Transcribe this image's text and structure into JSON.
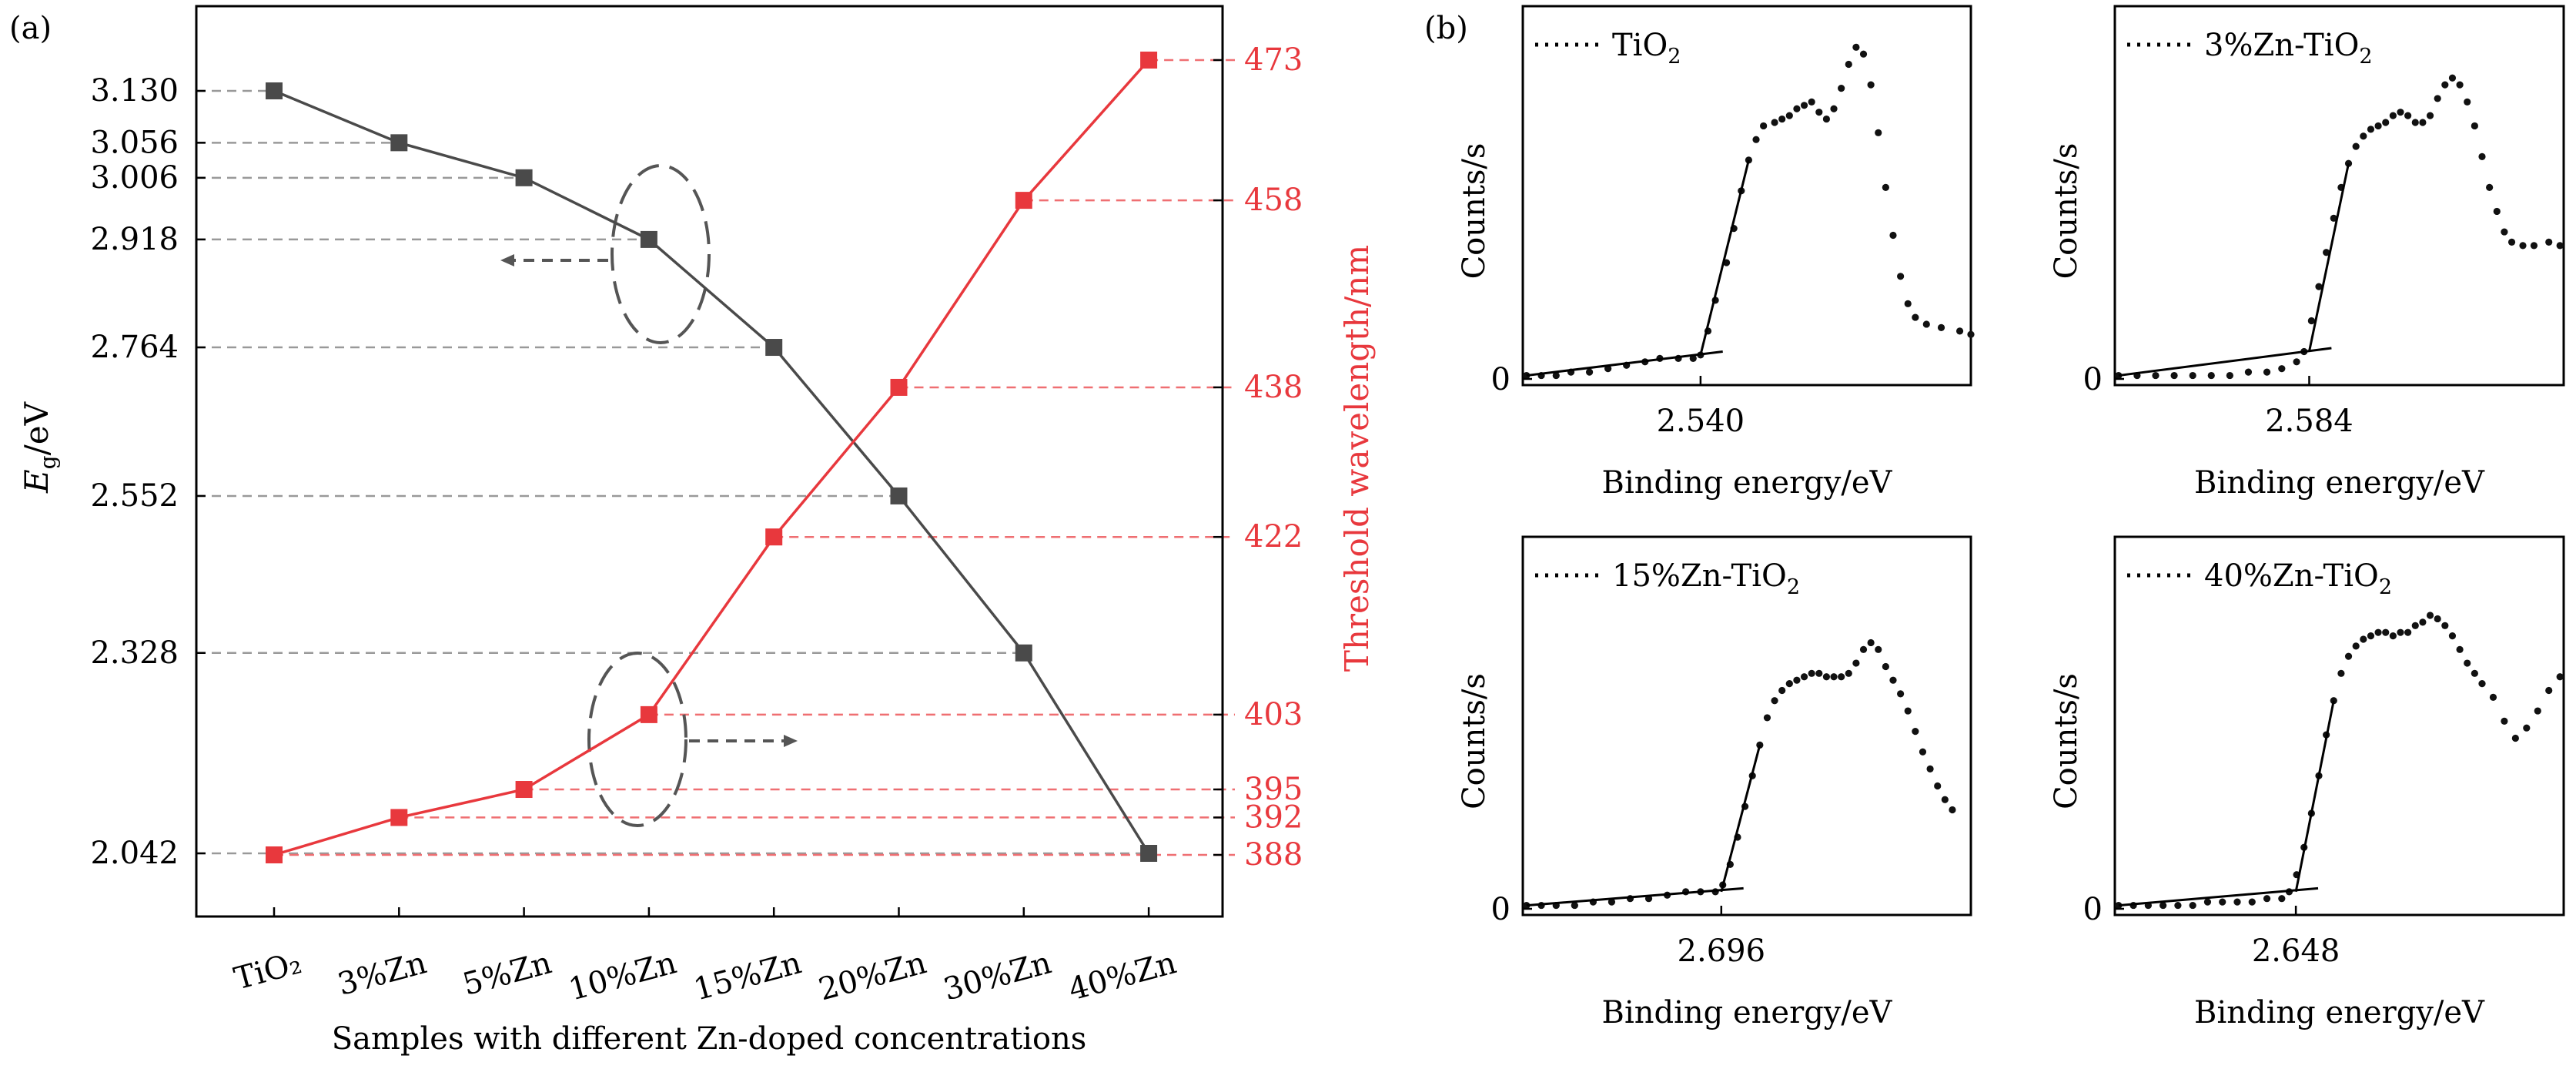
{
  "chart_data": [
    {
      "type": "line",
      "panel_label": "(a)",
      "xlabel": "Samples with different Zn-doped concentrations",
      "categories": [
        "TiO₂",
        "3%Zn",
        "5%Zn",
        "10%Zn",
        "15%Zn",
        "20%Zn",
        "30%Zn",
        "40%Zn"
      ],
      "y_left": {
        "label_main": "E",
        "label_sub": "g",
        "label_unit": "/eV",
        "ticks": [
          3.13,
          3.056,
          3.006,
          2.918,
          2.764,
          2.552,
          2.328,
          2.042
        ],
        "tick_labels": [
          "3.130",
          "3.056",
          "3.006",
          "2.918",
          "2.764",
          "2.552",
          "2.328",
          "2.042"
        ],
        "ylim": [
          1.93,
          3.24
        ]
      },
      "y_right": {
        "label": "Threshold wavelength/nm",
        "ticks": [
          473,
          458,
          438,
          422,
          403,
          395,
          392,
          388
        ],
        "tick_labels": [
          "473",
          "458",
          "438",
          "422",
          "403",
          "395",
          "392",
          "388"
        ],
        "ylim": [
          379,
          479
        ]
      },
      "series": [
        {
          "name": "Eg",
          "axis": "left",
          "color": "#4a4a4a",
          "values": [
            3.13,
            3.056,
            3.006,
            2.918,
            2.764,
            2.552,
            2.328,
            2.042
          ]
        },
        {
          "name": "Threshold wavelength",
          "axis": "right",
          "color": "#e8383d",
          "values": [
            388,
            392,
            395,
            403,
            422,
            438,
            458,
            473
          ]
        }
      ]
    },
    {
      "type": "scatter",
      "panel_label": "(b)",
      "subplots": [
        {
          "legend_label": "TiO",
          "legend_sub": "2",
          "xlabel": "Binding energy/eV",
          "ylabel": "Counts/s",
          "xtick": "2.540",
          "ytick": "0",
          "onset": 2.54,
          "xlim": [
            2.06,
            3.27
          ],
          "points": [
            [
              2.07,
              0.01
            ],
            [
              2.11,
              0.01
            ],
            [
              2.15,
              0.01
            ],
            [
              2.19,
              0.02
            ],
            [
              2.24,
              0.02
            ],
            [
              2.29,
              0.03
            ],
            [
              2.34,
              0.04
            ],
            [
              2.39,
              0.05
            ],
            [
              2.43,
              0.06
            ],
            [
              2.48,
              0.06
            ],
            [
              2.52,
              0.06
            ],
            [
              2.54,
              0.07
            ],
            [
              2.56,
              0.14
            ],
            [
              2.58,
              0.23
            ],
            [
              2.61,
              0.34
            ],
            [
              2.63,
              0.44
            ],
            [
              2.65,
              0.55
            ],
            [
              2.67,
              0.64
            ],
            [
              2.69,
              0.7
            ],
            [
              2.71,
              0.74
            ],
            [
              2.74,
              0.75
            ],
            [
              2.76,
              0.76
            ],
            [
              2.78,
              0.77
            ],
            [
              2.8,
              0.79
            ],
            [
              2.82,
              0.8
            ],
            [
              2.84,
              0.81
            ],
            [
              2.86,
              0.78
            ],
            [
              2.88,
              0.76
            ],
            [
              2.9,
              0.79
            ],
            [
              2.92,
              0.85
            ],
            [
              2.94,
              0.92
            ],
            [
              2.96,
              0.97
            ],
            [
              2.98,
              0.95
            ],
            [
              3.0,
              0.86
            ],
            [
              3.02,
              0.72
            ],
            [
              3.04,
              0.56
            ],
            [
              3.06,
              0.42
            ],
            [
              3.08,
              0.3
            ],
            [
              3.1,
              0.22
            ],
            [
              3.12,
              0.18
            ],
            [
              3.15,
              0.16
            ],
            [
              3.19,
              0.15
            ],
            [
              3.24,
              0.14
            ],
            [
              3.27,
              0.13
            ]
          ]
        },
        {
          "legend_label": "3%Zn-TiO",
          "legend_sub": "2",
          "xlabel": "Binding energy/eV",
          "ylabel": "Counts/s",
          "xtick": "2.584",
          "ytick": "0",
          "onset": 2.584,
          "xlim": [
            2.06,
            3.27
          ],
          "points": [
            [
              2.07,
              0.01
            ],
            [
              2.12,
              0.01
            ],
            [
              2.17,
              0.01
            ],
            [
              2.22,
              0.01
            ],
            [
              2.27,
              0.01
            ],
            [
              2.32,
              0.01
            ],
            [
              2.37,
              0.01
            ],
            [
              2.42,
              0.02
            ],
            [
              2.47,
              0.02
            ],
            [
              2.51,
              0.03
            ],
            [
              2.55,
              0.05
            ],
            [
              2.57,
              0.08
            ],
            [
              2.59,
              0.17
            ],
            [
              2.61,
              0.27
            ],
            [
              2.63,
              0.37
            ],
            [
              2.65,
              0.47
            ],
            [
              2.67,
              0.56
            ],
            [
              2.69,
              0.63
            ],
            [
              2.71,
              0.68
            ],
            [
              2.73,
              0.71
            ],
            [
              2.75,
              0.73
            ],
            [
              2.77,
              0.74
            ],
            [
              2.79,
              0.75
            ],
            [
              2.81,
              0.77
            ],
            [
              2.83,
              0.78
            ],
            [
              2.85,
              0.77
            ],
            [
              2.87,
              0.75
            ],
            [
              2.89,
              0.75
            ],
            [
              2.91,
              0.77
            ],
            [
              2.93,
              0.82
            ],
            [
              2.95,
              0.86
            ],
            [
              2.97,
              0.88
            ],
            [
              2.99,
              0.86
            ],
            [
              3.01,
              0.81
            ],
            [
              3.03,
              0.74
            ],
            [
              3.05,
              0.65
            ],
            [
              3.07,
              0.56
            ],
            [
              3.09,
              0.49
            ],
            [
              3.11,
              0.43
            ],
            [
              3.13,
              0.4
            ],
            [
              3.16,
              0.39
            ],
            [
              3.19,
              0.39
            ],
            [
              3.23,
              0.4
            ],
            [
              3.26,
              0.39
            ]
          ]
        },
        {
          "legend_label": "15%Zn-TiO",
          "legend_sub": "2",
          "xlabel": "Binding energy/eV",
          "ylabel": "Counts/s",
          "xtick": "2.696",
          "ytick": "0",
          "onset": 2.696,
          "xlim": [
            2.16,
            3.37
          ],
          "points": [
            [
              2.17,
              0.01
            ],
            [
              2.21,
              0.01
            ],
            [
              2.25,
              0.01
            ],
            [
              2.3,
              0.01
            ],
            [
              2.35,
              0.02
            ],
            [
              2.4,
              0.02
            ],
            [
              2.45,
              0.03
            ],
            [
              2.5,
              0.03
            ],
            [
              2.55,
              0.04
            ],
            [
              2.6,
              0.05
            ],
            [
              2.64,
              0.05
            ],
            [
              2.68,
              0.05
            ],
            [
              2.7,
              0.07
            ],
            [
              2.72,
              0.13
            ],
            [
              2.74,
              0.21
            ],
            [
              2.76,
              0.3
            ],
            [
              2.78,
              0.39
            ],
            [
              2.8,
              0.48
            ],
            [
              2.82,
              0.56
            ],
            [
              2.84,
              0.61
            ],
            [
              2.86,
              0.64
            ],
            [
              2.88,
              0.66
            ],
            [
              2.9,
              0.67
            ],
            [
              2.92,
              0.68
            ],
            [
              2.94,
              0.69
            ],
            [
              2.96,
              0.69
            ],
            [
              2.98,
              0.68
            ],
            [
              3.0,
              0.68
            ],
            [
              3.02,
              0.68
            ],
            [
              3.04,
              0.69
            ],
            [
              3.06,
              0.72
            ],
            [
              3.08,
              0.76
            ],
            [
              3.1,
              0.78
            ],
            [
              3.12,
              0.76
            ],
            [
              3.14,
              0.71
            ],
            [
              3.16,
              0.67
            ],
            [
              3.18,
              0.63
            ],
            [
              3.2,
              0.58
            ],
            [
              3.22,
              0.52
            ],
            [
              3.24,
              0.46
            ],
            [
              3.26,
              0.41
            ],
            [
              3.28,
              0.36
            ],
            [
              3.3,
              0.32
            ],
            [
              3.32,
              0.29
            ]
          ]
        },
        {
          "legend_label": "40%Zn-TiO",
          "legend_sub": "2",
          "xlabel": "Binding energy/eV",
          "ylabel": "Counts/s",
          "xtick": "2.648",
          "ytick": "0",
          "onset": 2.648,
          "xlim": [
            2.16,
            3.37
          ],
          "points": [
            [
              2.17,
              0.01
            ],
            [
              2.21,
              0.01
            ],
            [
              2.25,
              0.01
            ],
            [
              2.29,
              0.01
            ],
            [
              2.33,
              0.01
            ],
            [
              2.37,
              0.01
            ],
            [
              2.41,
              0.02
            ],
            [
              2.45,
              0.02
            ],
            [
              2.49,
              0.02
            ],
            [
              2.53,
              0.02
            ],
            [
              2.57,
              0.03
            ],
            [
              2.61,
              0.03
            ],
            [
              2.63,
              0.05
            ],
            [
              2.65,
              0.1
            ],
            [
              2.67,
              0.18
            ],
            [
              2.69,
              0.28
            ],
            [
              2.71,
              0.39
            ],
            [
              2.73,
              0.51
            ],
            [
              2.75,
              0.61
            ],
            [
              2.77,
              0.69
            ],
            [
              2.79,
              0.74
            ],
            [
              2.81,
              0.77
            ],
            [
              2.83,
              0.79
            ],
            [
              2.85,
              0.8
            ],
            [
              2.87,
              0.81
            ],
            [
              2.89,
              0.81
            ],
            [
              2.91,
              0.8
            ],
            [
              2.93,
              0.81
            ],
            [
              2.95,
              0.81
            ],
            [
              2.97,
              0.83
            ],
            [
              2.99,
              0.84
            ],
            [
              3.01,
              0.86
            ],
            [
              3.03,
              0.85
            ],
            [
              3.05,
              0.83
            ],
            [
              3.07,
              0.8
            ],
            [
              3.09,
              0.76
            ],
            [
              3.11,
              0.72
            ],
            [
              3.13,
              0.69
            ],
            [
              3.15,
              0.66
            ],
            [
              3.18,
              0.62
            ],
            [
              3.21,
              0.55
            ],
            [
              3.24,
              0.5
            ],
            [
              3.27,
              0.53
            ],
            [
              3.3,
              0.58
            ],
            [
              3.33,
              0.64
            ],
            [
              3.36,
              0.68
            ]
          ]
        }
      ]
    }
  ]
}
